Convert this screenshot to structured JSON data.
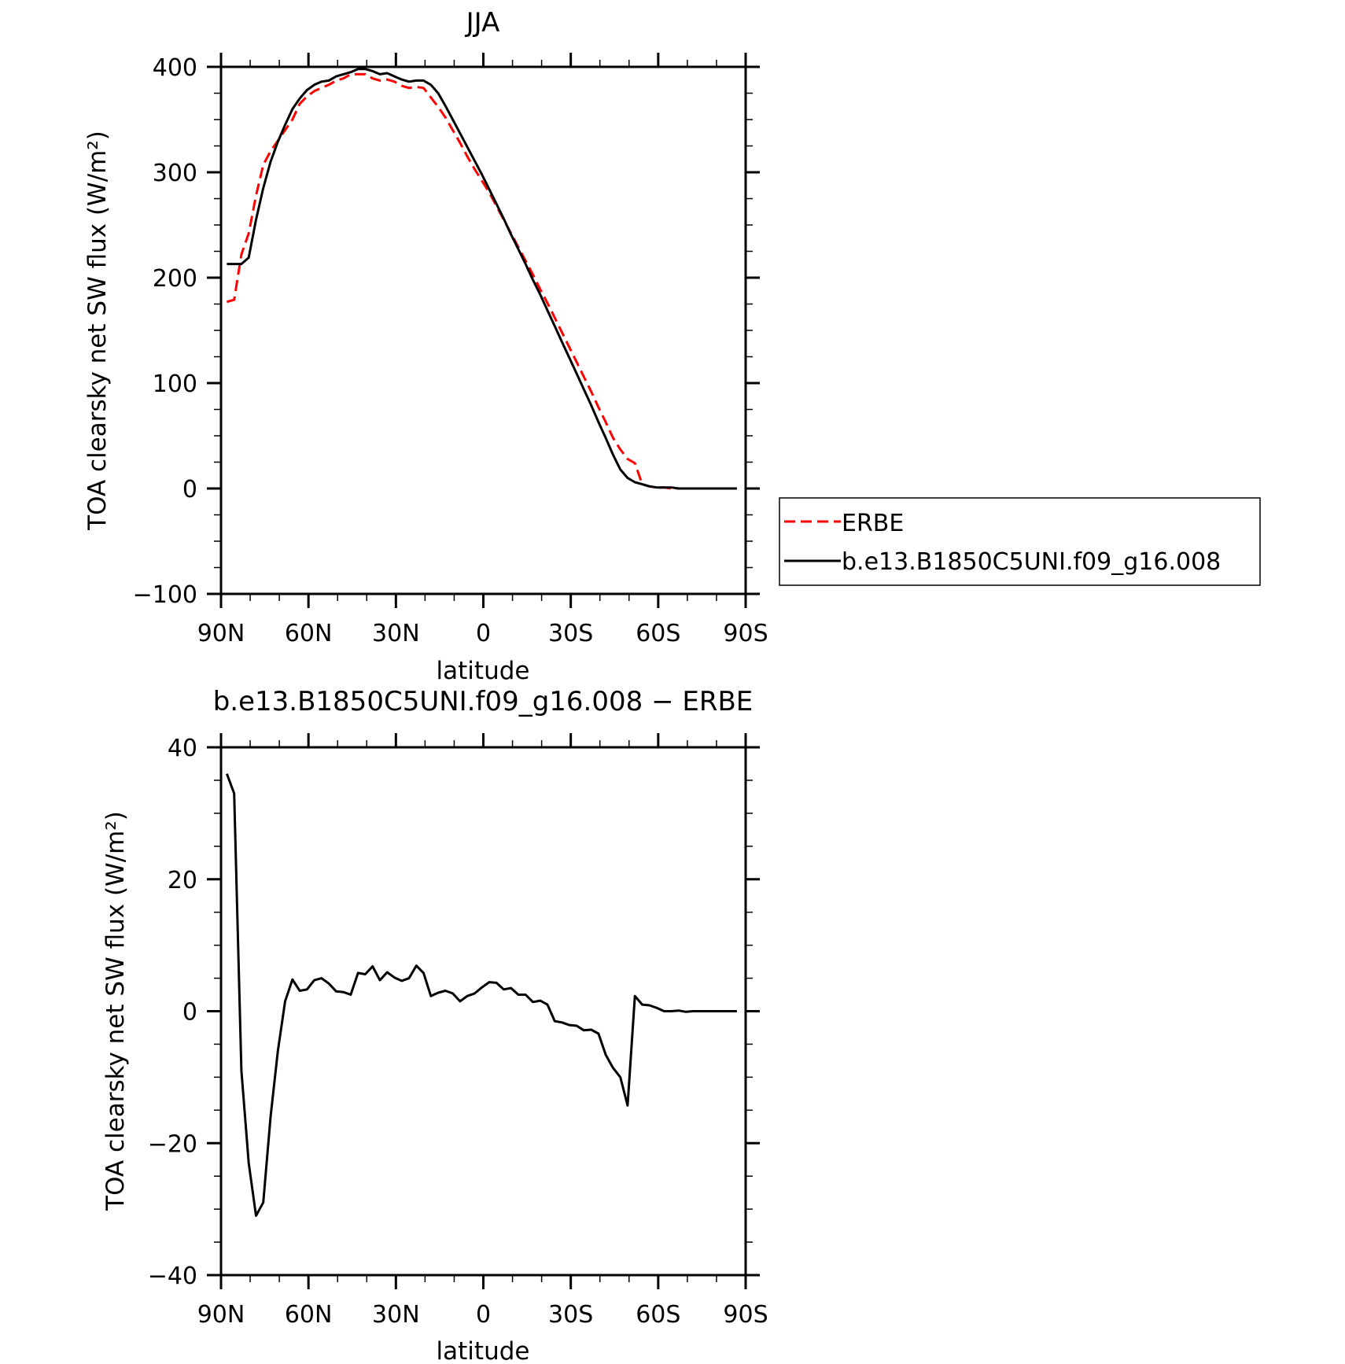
{
  "chart_data": [
    {
      "type": "line",
      "title": "JJA",
      "xlabel": "latitude",
      "ylabel": "TOA clearsky net SW flux (W/m²)",
      "xlim": [
        90,
        -90
      ],
      "ylim": [
        -100,
        400
      ],
      "x_ticks": [
        {
          "value": 90,
          "label": "90N"
        },
        {
          "value": 60,
          "label": "60N"
        },
        {
          "value": 30,
          "label": "30N"
        },
        {
          "value": 0,
          "label": "0"
        },
        {
          "value": -30,
          "label": "30S"
        },
        {
          "value": -60,
          "label": "60S"
        },
        {
          "value": -90,
          "label": "90S"
        }
      ],
      "y_ticks": [
        {
          "value": 400,
          "label": "400"
        },
        {
          "value": 300,
          "label": "300"
        },
        {
          "value": 200,
          "label": "200"
        },
        {
          "value": 100,
          "label": "100"
        },
        {
          "value": 0,
          "label": "0"
        },
        {
          "value": -100,
          "label": "−100"
        }
      ],
      "legend_position": "right",
      "series": [
        {
          "name": "ERBE",
          "color": "#ff0000",
          "dash": "dashed",
          "x": [
            88,
            85.5,
            83,
            80.5,
            78,
            75.5,
            73,
            70.5,
            68,
            65.5,
            63,
            60.5,
            58,
            55.5,
            53,
            50.5,
            48,
            45.5,
            43,
            40.5,
            38,
            35.5,
            33,
            30.5,
            28,
            25.5,
            23,
            20.5,
            18,
            15.5,
            13,
            10.5,
            8,
            5.5,
            3,
            0.5,
            -2,
            -4.5,
            -7,
            -9.5,
            -12,
            -14.5,
            -17,
            -19.5,
            -22,
            -24.5,
            -27,
            -29.5,
            -32,
            -34.5,
            -37,
            -39.5,
            -42,
            -44.5,
            -47,
            -49.5,
            -52,
            -54.5,
            -57,
            -59.5,
            -62,
            -64.5,
            -67,
            -69.5,
            -72,
            -74.5,
            -77,
            -79.5,
            -82,
            -84.5,
            -87
          ],
          "y": [
            177,
            179,
            222,
            242,
            278,
            307,
            320,
            330,
            340,
            350,
            365,
            372,
            377,
            380,
            383,
            387,
            389,
            393,
            393,
            393,
            389,
            387,
            388,
            386,
            382,
            380,
            381,
            380,
            371,
            362,
            352,
            340,
            328,
            315,
            303,
            292,
            281,
            268,
            255,
            242,
            229,
            216,
            203,
            189,
            176,
            162,
            148,
            134,
            120,
            106,
            92,
            77,
            63,
            48,
            37,
            28,
            24,
            4,
            2,
            1,
            1,
            0,
            0,
            0,
            0,
            0,
            0,
            0,
            0,
            0,
            0
          ]
        },
        {
          "name": "b.e13.B1850C5UNI.f09_g16.008",
          "color": "#000000",
          "dash": "solid",
          "x": [
            88,
            85.5,
            83,
            80.5,
            78,
            75.5,
            73,
            70.5,
            68,
            65.5,
            63,
            60.5,
            58,
            55.5,
            53,
            50.5,
            48,
            45.5,
            43,
            40.5,
            38,
            35.5,
            33,
            30.5,
            28,
            25.5,
            23,
            20.5,
            18,
            15.5,
            13,
            10.5,
            8,
            5.5,
            3,
            0.5,
            -2,
            -4.5,
            -7,
            -9.5,
            -12,
            -14.5,
            -17,
            -19.5,
            -22,
            -24.5,
            -27,
            -29.5,
            -32,
            -34.5,
            -37,
            -39.5,
            -42,
            -44.5,
            -47,
            -49.5,
            -52,
            -54.5,
            -57,
            -59.5,
            -62,
            -64.5,
            -67,
            -69.5,
            -72,
            -74.5,
            -77,
            -79.5,
            -82,
            -84.5,
            -87
          ],
          "y": [
            213,
            213,
            213,
            219,
            255,
            285,
            310,
            329,
            345,
            360,
            370,
            378,
            383,
            386,
            387,
            391,
            393,
            395,
            398,
            398,
            396,
            393,
            394,
            391,
            388,
            386,
            387,
            387,
            383,
            375,
            363,
            350,
            337,
            324,
            311,
            298,
            284,
            270,
            256,
            241,
            227,
            213,
            198,
            184,
            169,
            154,
            139,
            124,
            109,
            94,
            79,
            63,
            48,
            32,
            18,
            10,
            6,
            4,
            2,
            1,
            1,
            1,
            0,
            0,
            0,
            0,
            0,
            0,
            0,
            0,
            0
          ]
        }
      ]
    },
    {
      "type": "line",
      "title": "b.e13.B1850C5UNI.f09_g16.008 − ERBE",
      "xlabel": "latitude",
      "ylabel": "TOA clearsky net SW flux (W/m²)",
      "xlim": [
        90,
        -90
      ],
      "ylim": [
        -40,
        40
      ],
      "x_ticks": [
        {
          "value": 90,
          "label": "90N"
        },
        {
          "value": 60,
          "label": "60N"
        },
        {
          "value": 30,
          "label": "30N"
        },
        {
          "value": 0,
          "label": "0"
        },
        {
          "value": -30,
          "label": "30S"
        },
        {
          "value": -60,
          "label": "60S"
        },
        {
          "value": -90,
          "label": "90S"
        }
      ],
      "y_ticks": [
        {
          "value": 40,
          "label": "40"
        },
        {
          "value": 20,
          "label": "20"
        },
        {
          "value": 0,
          "label": "0"
        },
        {
          "value": -20,
          "label": "−20"
        },
        {
          "value": -40,
          "label": "−40"
        }
      ],
      "series": [
        {
          "color": "#000000",
          "dash": "solid",
          "x": [
            88,
            85.5,
            83,
            80.5,
            78,
            75.5,
            73,
            70.5,
            68,
            65.5,
            63,
            60.5,
            58,
            55.5,
            53,
            50.5,
            48,
            45.5,
            43,
            40.5,
            38,
            35.5,
            33,
            30.5,
            28,
            25.5,
            23,
            20.5,
            18,
            15.5,
            13,
            10.5,
            8,
            5.5,
            3,
            0.5,
            -2,
            -4.5,
            -7,
            -9.5,
            -12,
            -14.5,
            -17,
            -19.5,
            -22,
            -24.5,
            -27,
            -29.5,
            -32,
            -34.5,
            -37,
            -39.5,
            -42,
            -44.5,
            -47,
            -49.5,
            -52,
            -54.5,
            -57,
            -59.5,
            -62,
            -64.5,
            -67,
            -69.5,
            -72,
            -74.5,
            -77,
            -79.5,
            -82,
            -84.5,
            -87
          ],
          "y": [
            36,
            33,
            -9,
            -23,
            -31,
            -29,
            -16,
            -6,
            1.5,
            4.8,
            3.1,
            3.3,
            4.7,
            5,
            4.2,
            3,
            2.9,
            2.5,
            5.8,
            5.6,
            6.8,
            4.7,
            5.9,
            5.1,
            4.6,
            5,
            6.9,
            5.8,
            2.3,
            2.8,
            3.1,
            2.7,
            1.5,
            2.3,
            2.7,
            3.6,
            4.4,
            4.3,
            3.3,
            3.5,
            2.5,
            2.5,
            1.4,
            1.6,
            1,
            -1.5,
            -1.7,
            -2.1,
            -2.2,
            -2.9,
            -2.8,
            -3.4,
            -6.6,
            -8.6,
            -10,
            -14.3,
            2.3,
            1,
            0.9,
            0.5,
            0,
            0,
            0.1,
            -0.1,
            0,
            0,
            0,
            0,
            0,
            0,
            0
          ]
        }
      ]
    }
  ]
}
